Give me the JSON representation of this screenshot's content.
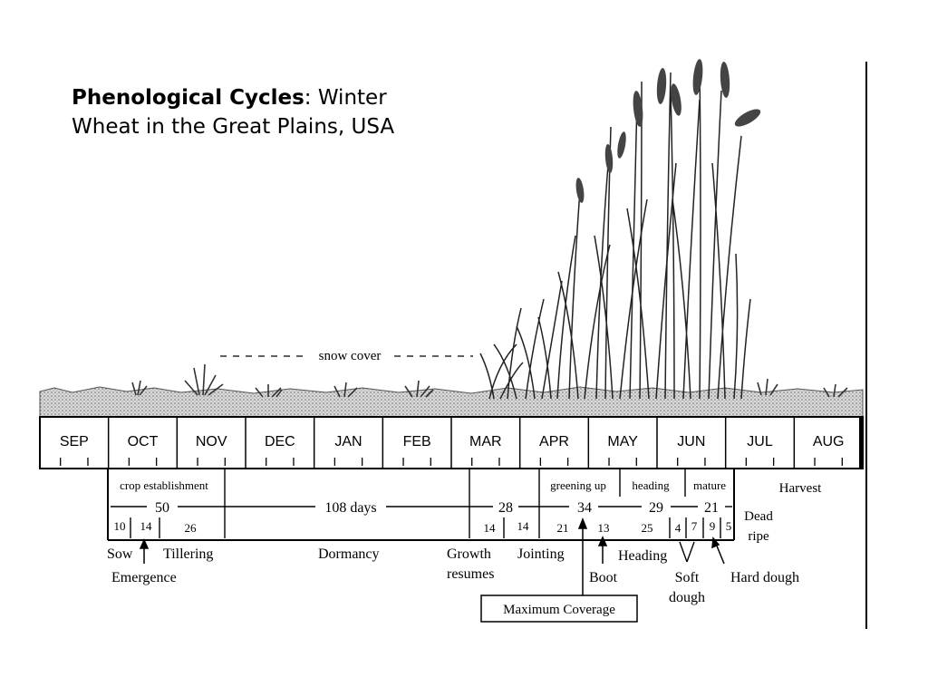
{
  "title": {
    "bold": "Phenological Cycles",
    "rest_line1": ": Winter",
    "line2": "Wheat in the Great Plains, USA"
  },
  "snow_label": "snow cover",
  "months": [
    "SEP",
    "OCT",
    "NOV",
    "DEC",
    "JAN",
    "FEB",
    "MAR",
    "APR",
    "MAY",
    "JUN",
    "JUL",
    "AUG"
  ],
  "phase_labels": {
    "crop_establishment": "crop establishment",
    "greening_up": "greening up",
    "heading": "heading",
    "mature": "mature",
    "harvest": "Harvest",
    "dead_ripe_1": "Dead",
    "dead_ripe_2": "ripe"
  },
  "durations": [
    "50",
    "108 days",
    "28",
    "34",
    "29",
    "21"
  ],
  "dates": [
    "10",
    "14",
    "26",
    "14",
    "14",
    "21",
    "13",
    "25",
    "4",
    "7",
    "9",
    "5"
  ],
  "stages": {
    "sow": "Sow",
    "emergence": "Emergence",
    "tillering": "Tillering",
    "dormancy": "Dormancy",
    "growth_1": "Growth",
    "growth_2": "resumes",
    "jointing": "Jointing",
    "boot": "Boot",
    "heading": "Heading",
    "soft_1": "Soft",
    "soft_2": "dough",
    "hard_dough": "Hard dough",
    "maximum_coverage": "Maximum Coverage"
  },
  "colors": {
    "ink": "#000000",
    "soil": "#9a9a9a",
    "plant": "#333333",
    "paper": "#ffffff"
  }
}
